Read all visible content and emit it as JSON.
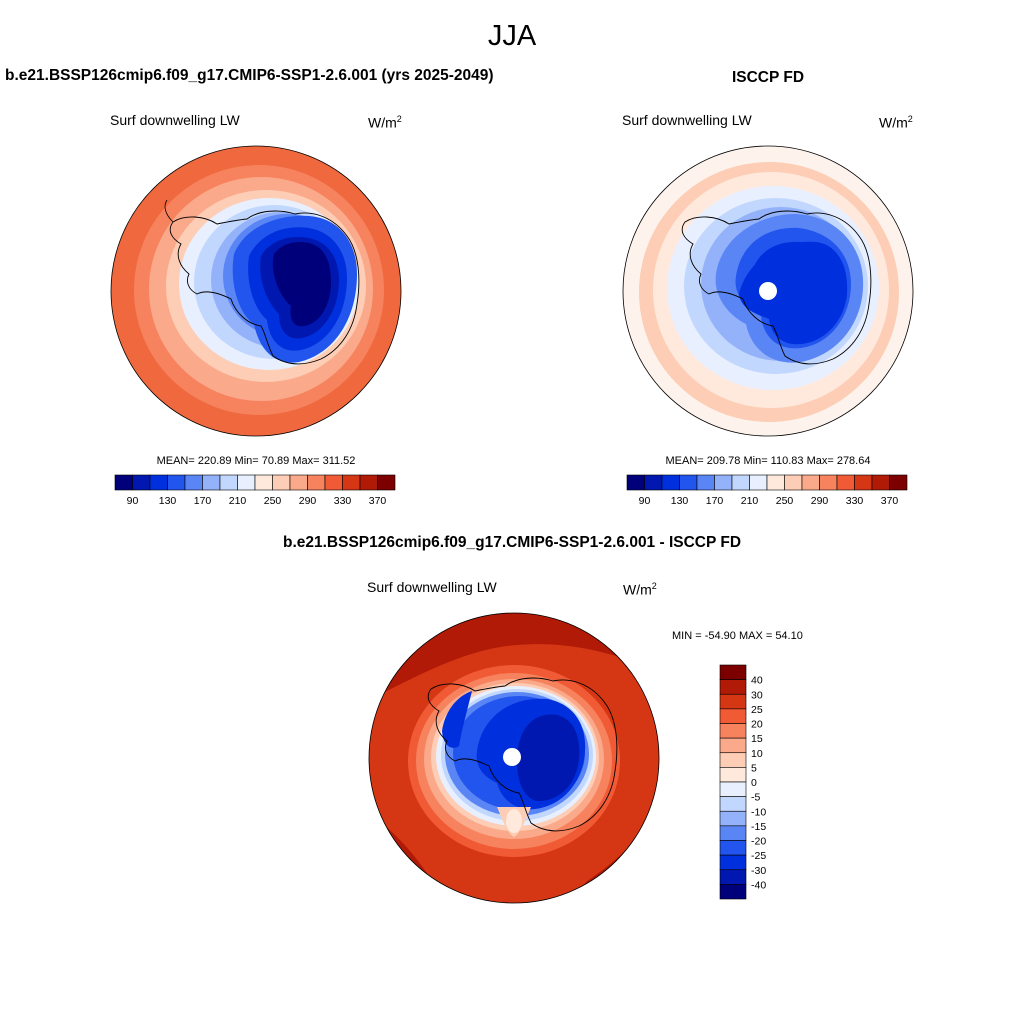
{
  "title": "JJA",
  "panels": [
    {
      "id": "model",
      "header": "b.e21.BSSP126cmip6.f09_g17.CMIP6-SSP1-2.6.001 (yrs 2025-2049)",
      "variable": "Surf downwelling LW",
      "units_base": "W/m",
      "units_exp": "2",
      "stats": "MEAN= 220.89  Min=  70.89  Max= 311.52",
      "stats_values": {
        "mean": 220.89,
        "min": 70.89,
        "max": 311.52
      }
    },
    {
      "id": "obs",
      "header": "ISCCP FD",
      "variable": "Surf downwelling LW",
      "units_base": "W/m",
      "units_exp": "2",
      "stats": "MEAN= 209.78  Min= 110.83  Max= 278.64",
      "stats_values": {
        "mean": 209.78,
        "min": 110.83,
        "max": 278.64
      }
    },
    {
      "id": "diff",
      "header": "b.e21.BSSP126cmip6.f09_g17.CMIP6-SSP1-2.6.001 - ISCCP FD",
      "variable": "Surf downwelling LW",
      "units_base": "W/m",
      "units_exp": "2",
      "stats": "MIN = -54.90 MAX =  54.10",
      "stats_values": {
        "min": -54.9,
        "max": 54.1
      }
    }
  ],
  "colorbar_abs": {
    "labels": [
      "90",
      "130",
      "170",
      "210",
      "250",
      "290",
      "330",
      "370"
    ],
    "colors": [
      "#00007a",
      "#0018b0",
      "#0030dd",
      "#2255ee",
      "#5a85f5",
      "#93b2fa",
      "#c2d7fd",
      "#e8f0ff",
      "#ffe9dc",
      "#fdcdb5",
      "#faa98a",
      "#f7825e",
      "#f05a34",
      "#d53614",
      "#b01a06",
      "#7d0000"
    ]
  },
  "colorbar_diff": {
    "labels": [
      "40",
      "30",
      "25",
      "20",
      "15",
      "10",
      "5",
      "0",
      "-5",
      "-10",
      "-15",
      "-20",
      "-25",
      "-30",
      "-40"
    ],
    "colors": [
      "#7d0000",
      "#b01a06",
      "#d53614",
      "#f05a34",
      "#f7825e",
      "#faa98a",
      "#fdcdb5",
      "#ffe9dc",
      "#e8f0ff",
      "#c2d7fd",
      "#93b2fa",
      "#5a85f5",
      "#2255ee",
      "#0030dd",
      "#0018b0",
      "#00007a"
    ]
  }
}
